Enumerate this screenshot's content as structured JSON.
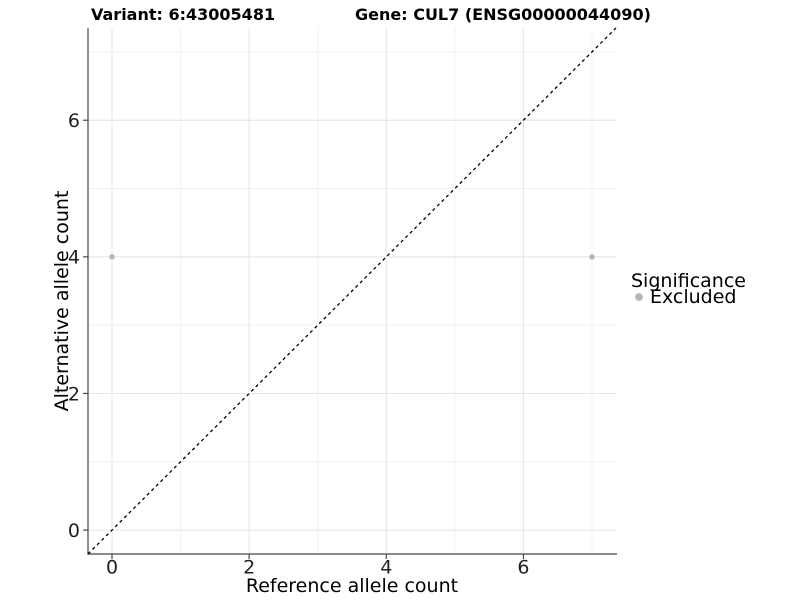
{
  "chart_data": {
    "type": "scatter",
    "titles": [
      "Variant: 6:43005481",
      "Gene: CUL7 (ENSG00000044090)"
    ],
    "xlabel": "Reference allele count",
    "ylabel": "Alternative allele count",
    "xlim": [
      -0.35,
      7.35
    ],
    "ylim": [
      -0.35,
      7.35
    ],
    "x_ticks": [
      0,
      2,
      4,
      6
    ],
    "y_ticks": [
      0,
      2,
      4,
      6
    ],
    "x_minor_ticks": [
      1,
      3,
      5,
      7
    ],
    "y_minor_ticks": [
      1,
      3,
      5,
      7
    ],
    "grid": "major+minor",
    "identity_line": {
      "style": "dashed",
      "color": "#000000",
      "from": [
        -0.35,
        -0.35
      ],
      "to": [
        7.35,
        7.35
      ]
    },
    "series": [
      {
        "name": "Excluded",
        "color": "#b5b5b5",
        "points": [
          [
            0,
            4
          ],
          [
            7,
            4
          ]
        ]
      }
    ],
    "legend": {
      "title": "Significance",
      "position": "right",
      "entries": [
        {
          "label": "Excluded",
          "color": "#b5b5b5"
        }
      ]
    }
  },
  "colors": {
    "background": "#ffffff",
    "grid_major": "#e4e4e4",
    "grid_minor": "#f2f2f2",
    "axis_line": "#464646",
    "tick_mark": "#464646",
    "point_gray": "#b5b5b5",
    "dashed_line": "#000000"
  }
}
